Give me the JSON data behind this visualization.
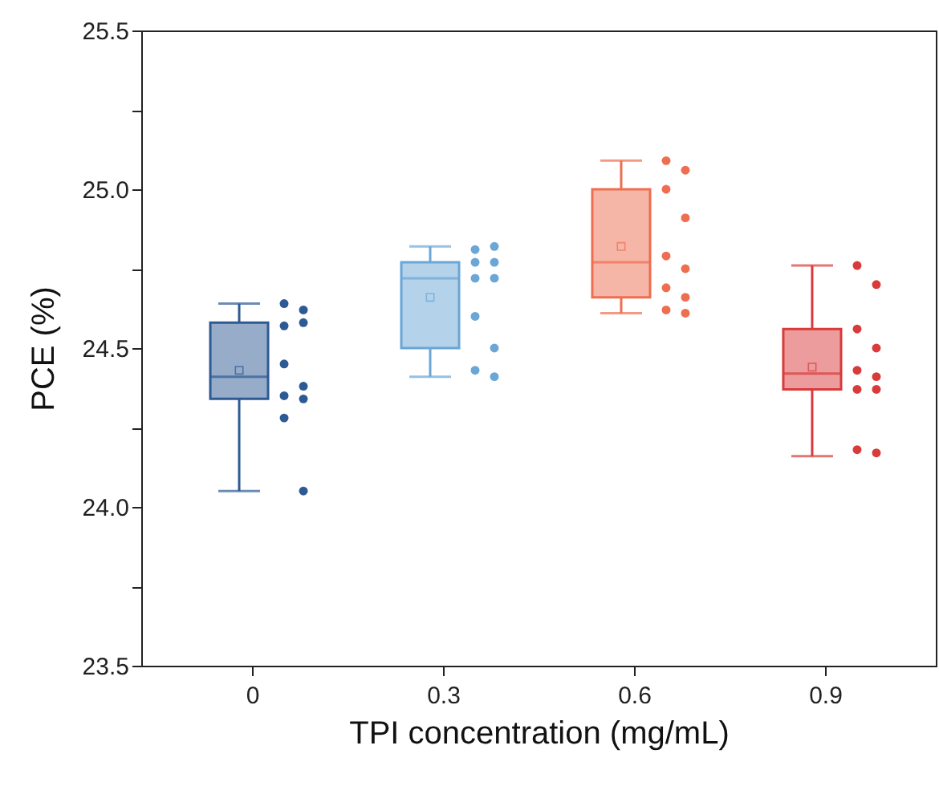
{
  "chart_data": {
    "type": "box",
    "xlabel": "TPI concentration (mg/mL)",
    "ylabel": "PCE (%)",
    "categories": [
      "0",
      "0.3",
      "0.6",
      "0.9"
    ],
    "ylim": [
      23.5,
      25.5
    ],
    "yticks": [
      {
        "value": 23.5,
        "label": "23.5"
      },
      {
        "value": 23.75,
        "label": null
      },
      {
        "value": 24,
        "label": "24.0"
      },
      {
        "value": 24.25,
        "label": null
      },
      {
        "value": 24.5,
        "label": "24.5"
      },
      {
        "value": 24.75,
        "label": null
      },
      {
        "value": 25,
        "label": "25.0"
      },
      {
        "value": 25.25,
        "label": null
      },
      {
        "value": 25.5,
        "label": "25.5"
      }
    ],
    "grid": false,
    "series": [
      {
        "colors": [
          "#2e5a94",
          "#6aa6d6",
          "#ee6e50",
          "#d93a3a"
        ],
        "boxes": [
          {
            "low": 24.05,
            "q1": 24.34,
            "median": 24.41,
            "q3": 24.58,
            "high": 24.64,
            "mean": 24.43
          },
          {
            "low": 24.41,
            "q1": 24.5,
            "median": 24.72,
            "q3": 24.77,
            "high": 24.82,
            "mean": 24.66
          },
          {
            "low": 24.61,
            "q1": 24.66,
            "median": 24.77,
            "q3": 25.0,
            "high": 25.09,
            "mean": 24.82
          },
          {
            "low": 24.16,
            "q1": 24.37,
            "median": 24.42,
            "q3": 24.56,
            "high": 24.76,
            "mean": 24.44
          }
        ]
      },
      {
        "type": "scatter",
        "marker": "circle",
        "x": [
          "0",
          "0",
          "0",
          "0",
          "0",
          "0",
          "0",
          "0",
          "0",
          "0",
          "0.3",
          "0.3",
          "0.3",
          "0.3",
          "0.3",
          "0.3",
          "0.3",
          "0.3",
          "0.3",
          "0.3",
          "0.6",
          "0.6",
          "0.6",
          "0.6",
          "0.6",
          "0.6",
          "0.6",
          "0.6",
          "0.6",
          "0.6",
          "0.9",
          "0.9",
          "0.9",
          "0.9",
          "0.9",
          "0.9",
          "0.9",
          "0.9",
          "0.9",
          "0.9"
        ],
        "values": [
          24.64,
          24.62,
          24.57,
          24.58,
          24.45,
          24.38,
          24.35,
          24.34,
          24.28,
          24.05,
          24.81,
          24.82,
          24.77,
          24.77,
          24.72,
          24.72,
          24.6,
          24.5,
          24.43,
          24.41,
          25.09,
          25.06,
          25.0,
          24.91,
          24.79,
          24.75,
          24.69,
          24.66,
          24.62,
          24.61,
          24.76,
          24.7,
          24.56,
          24.5,
          24.43,
          24.41,
          24.37,
          24.37,
          24.18,
          24.17
        ],
        "colors": [
          "#2e5a94",
          "#2e5a94",
          "#2e5a94",
          "#2e5a94",
          "#2e5a94",
          "#2e5a94",
          "#2e5a94",
          "#2e5a94",
          "#2e5a94",
          "#2e5a94",
          "#6aa6d6",
          "#6aa6d6",
          "#6aa6d6",
          "#6aa6d6",
          "#6aa6d6",
          "#6aa6d6",
          "#6aa6d6",
          "#6aa6d6",
          "#6aa6d6",
          "#6aa6d6",
          "#ee6e50",
          "#ee6e50",
          "#ee6e50",
          "#ee6e50",
          "#ee6e50",
          "#ee6e50",
          "#ee6e50",
          "#ee6e50",
          "#ee6e50",
          "#ee6e50",
          "#d93a3a",
          "#d93a3a",
          "#d93a3a",
          "#d93a3a",
          "#d93a3a",
          "#d93a3a",
          "#d93a3a",
          "#d93a3a",
          "#d93a3a",
          "#d93a3a"
        ]
      }
    ]
  }
}
